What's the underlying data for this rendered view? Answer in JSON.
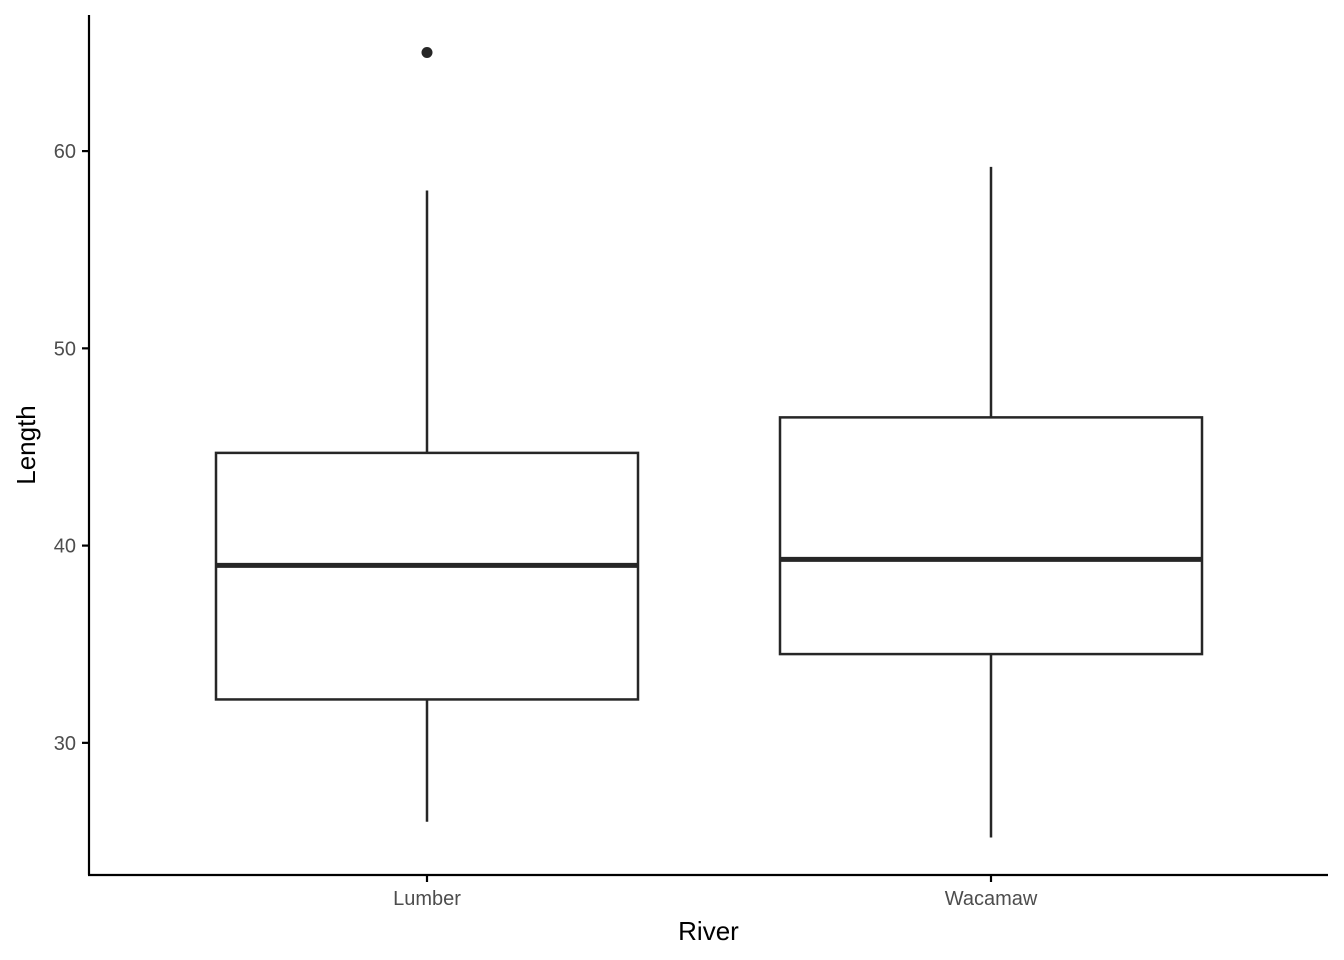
{
  "chart_data": {
    "type": "box",
    "xlabel": "River",
    "ylabel": "Length",
    "categories": [
      "Lumber",
      "Wacamaw"
    ],
    "boxes": [
      {
        "category": "Lumber",
        "whisker_low": 26.0,
        "q1": 32.2,
        "median": 39.0,
        "q3": 44.7,
        "whisker_high": 58.0,
        "outliers": [
          65.0
        ]
      },
      {
        "category": "Wacamaw",
        "whisker_low": 25.2,
        "q1": 34.5,
        "median": 39.3,
        "q3": 46.5,
        "whisker_high": 59.2,
        "outliers": []
      }
    ],
    "ylim": [
      23.3,
      66.9
    ],
    "yticks": [
      30,
      40,
      50,
      60
    ],
    "ytick_labels": [
      "30",
      "40",
      "50",
      "60"
    ],
    "grid": false,
    "colors": {
      "line": "#262626",
      "box_fill": "#ffffff",
      "axis": "#000000",
      "tick_text": "#4d4d4d"
    }
  }
}
